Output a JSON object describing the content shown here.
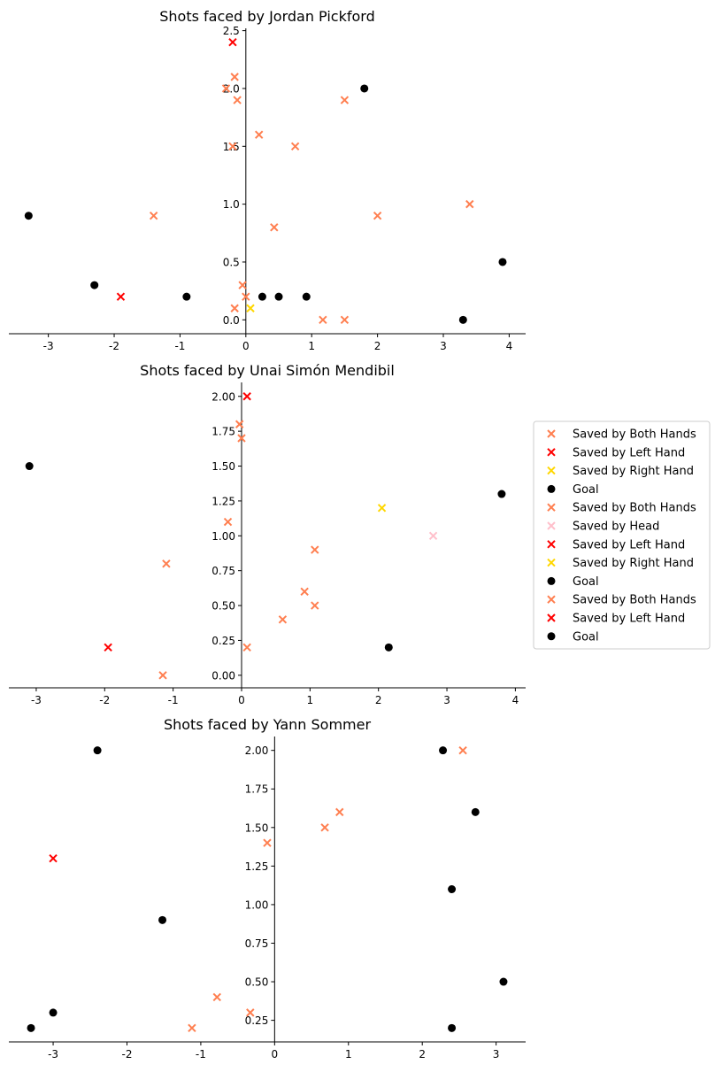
{
  "colors": {
    "Saved by Both Hands": "#ff7f50",
    "Saved by Left Hand": "#ff0000",
    "Saved by Right Hand": "#ffd700",
    "Saved by Head": "#ffc0cb",
    "Goal": "#000000"
  },
  "legend": {
    "position": "right",
    "entries": [
      {
        "label": "Saved by Both Hands",
        "marker": "x",
        "color": "#ff7f50"
      },
      {
        "label": "Saved by Left Hand",
        "marker": "x",
        "color": "#ff0000"
      },
      {
        "label": "Saved by Right Hand",
        "marker": "x",
        "color": "#ffd700"
      },
      {
        "label": "Goal",
        "marker": "o",
        "color": "#000000"
      },
      {
        "label": "Saved by Both Hands",
        "marker": "x",
        "color": "#ff7f50"
      },
      {
        "label": "Saved by Head",
        "marker": "x",
        "color": "#ffc0cb"
      },
      {
        "label": "Saved by Left Hand",
        "marker": "x",
        "color": "#ff0000"
      },
      {
        "label": "Saved by Right Hand",
        "marker": "x",
        "color": "#ffd700"
      },
      {
        "label": "Goal",
        "marker": "o",
        "color": "#000000"
      },
      {
        "label": "Saved by Both Hands",
        "marker": "x",
        "color": "#ff7f50"
      },
      {
        "label": "Saved by Left Hand",
        "marker": "x",
        "color": "#ff0000"
      },
      {
        "label": "Goal",
        "marker": "o",
        "color": "#000000"
      }
    ]
  },
  "chart_data": [
    {
      "type": "scatter",
      "title": "Shots faced by Jordan Pickford",
      "xlabel": "",
      "ylabel": "",
      "xlim": [
        -3.6,
        4.25
      ],
      "ylim": [
        -0.12,
        2.52
      ],
      "xticks": [
        "-3",
        "-2",
        "-1",
        "0",
        "1",
        "2",
        "3",
        "4"
      ],
      "xtick_values": [
        -3,
        -2,
        -1,
        0,
        1,
        2,
        3,
        4
      ],
      "yticks": [
        "0.0",
        "0.5",
        "1.0",
        "1.5",
        "2.0",
        "2.5"
      ],
      "ytick_values": [
        0,
        0.5,
        1,
        1.5,
        2,
        2.5
      ],
      "spines": "centered",
      "series": [
        {
          "name": "Saved by Both Hands",
          "marker": "x",
          "points": [
            [
              -0.3,
              2.0
            ],
            [
              -0.17,
              2.1
            ],
            [
              -0.13,
              1.9
            ],
            [
              0.2,
              1.6
            ],
            [
              -0.2,
              1.5
            ],
            [
              0.75,
              1.5
            ],
            [
              1.5,
              1.9
            ],
            [
              -1.4,
              0.9
            ],
            [
              2.0,
              0.9
            ],
            [
              3.4,
              1.0
            ],
            [
              0.43,
              0.8
            ],
            [
              -0.05,
              0.3
            ],
            [
              0.0,
              0.2
            ],
            [
              -0.17,
              0.1
            ],
            [
              1.17,
              0.0
            ],
            [
              1.5,
              0.0
            ]
          ]
        },
        {
          "name": "Saved by Left Hand",
          "marker": "x",
          "points": [
            [
              -0.2,
              2.4
            ],
            [
              -1.9,
              0.2
            ]
          ]
        },
        {
          "name": "Saved by Right Hand",
          "marker": "x",
          "points": [
            [
              0.07,
              0.1
            ]
          ]
        },
        {
          "name": "Goal",
          "marker": "o",
          "points": [
            [
              1.8,
              2.0
            ],
            [
              -3.3,
              0.9
            ],
            [
              -2.3,
              0.3
            ],
            [
              -0.9,
              0.2
            ],
            [
              0.25,
              0.2
            ],
            [
              0.5,
              0.2
            ],
            [
              0.92,
              0.2
            ],
            [
              3.9,
              0.5
            ],
            [
              3.3,
              0.0
            ]
          ]
        }
      ]
    },
    {
      "type": "scatter",
      "title": "Shots faced by Unai Simón Mendibil",
      "xlabel": "",
      "ylabel": "",
      "xlim": [
        -3.4,
        4.15
      ],
      "ylim": [
        -0.09,
        2.1
      ],
      "xticks": [
        "-3",
        "-2",
        "-1",
        "0",
        "1",
        "2",
        "3",
        "4"
      ],
      "xtick_values": [
        -3,
        -2,
        -1,
        0,
        1,
        2,
        3,
        4
      ],
      "yticks": [
        "0.00",
        "0.25",
        "0.50",
        "0.75",
        "1.00",
        "1.25",
        "1.50",
        "1.75",
        "2.00"
      ],
      "ytick_values": [
        0,
        0.25,
        0.5,
        0.75,
        1.0,
        1.25,
        1.5,
        1.75,
        2.0
      ],
      "spines": "centered",
      "series": [
        {
          "name": "Saved by Both Hands",
          "marker": "x",
          "points": [
            [
              -0.03,
              1.8
            ],
            [
              0.0,
              1.7
            ],
            [
              -0.2,
              1.1
            ],
            [
              -1.1,
              0.8
            ],
            [
              1.07,
              0.9
            ],
            [
              0.92,
              0.6
            ],
            [
              1.07,
              0.5
            ],
            [
              0.6,
              0.4
            ],
            [
              0.08,
              0.2
            ],
            [
              -1.15,
              0.0
            ]
          ]
        },
        {
          "name": "Saved by Head",
          "marker": "x",
          "points": [
            [
              2.8,
              1.0
            ]
          ]
        },
        {
          "name": "Saved by Left Hand",
          "marker": "x",
          "points": [
            [
              0.08,
              2.0
            ],
            [
              -1.95,
              0.2
            ]
          ]
        },
        {
          "name": "Saved by Right Hand",
          "marker": "x",
          "points": [
            [
              2.05,
              1.2
            ]
          ]
        },
        {
          "name": "Goal",
          "marker": "o",
          "points": [
            [
              -3.1,
              1.5
            ],
            [
              3.8,
              1.3
            ],
            [
              2.15,
              0.2
            ]
          ]
        }
      ]
    },
    {
      "type": "scatter",
      "title": "Shots faced by Yann Sommer",
      "xlabel": "",
      "ylabel": "",
      "xlim": [
        -3.6,
        3.4
      ],
      "ylim": [
        0.11,
        2.09
      ],
      "xticks": [
        "-3",
        "-2",
        "-1",
        "0",
        "1",
        "2",
        "3"
      ],
      "xtick_values": [
        -3,
        -2,
        -1,
        0,
        1,
        2,
        3
      ],
      "yticks": [
        "0.25",
        "0.50",
        "0.75",
        "1.00",
        "1.25",
        "1.50",
        "1.75",
        "2.00"
      ],
      "ytick_values": [
        0.25,
        0.5,
        0.75,
        1.0,
        1.25,
        1.5,
        1.75,
        2.0
      ],
      "spines": "centered",
      "series": [
        {
          "name": "Saved by Both Hands",
          "marker": "x",
          "points": [
            [
              2.55,
              2.0
            ],
            [
              0.88,
              1.6
            ],
            [
              0.68,
              1.5
            ],
            [
              -0.1,
              1.4
            ],
            [
              -0.78,
              0.4
            ],
            [
              -0.33,
              0.3
            ],
            [
              -1.12,
              0.2
            ]
          ]
        },
        {
          "name": "Saved by Left Hand",
          "marker": "x",
          "points": [
            [
              -3.0,
              1.3
            ]
          ]
        },
        {
          "name": "Goal",
          "marker": "o",
          "points": [
            [
              -2.4,
              2.0
            ],
            [
              2.28,
              2.0
            ],
            [
              2.72,
              1.6
            ],
            [
              2.4,
              1.1
            ],
            [
              -1.52,
              0.9
            ],
            [
              3.1,
              0.5
            ],
            [
              -3.0,
              0.3
            ],
            [
              -3.3,
              0.2
            ],
            [
              2.4,
              0.2
            ]
          ]
        }
      ]
    }
  ]
}
